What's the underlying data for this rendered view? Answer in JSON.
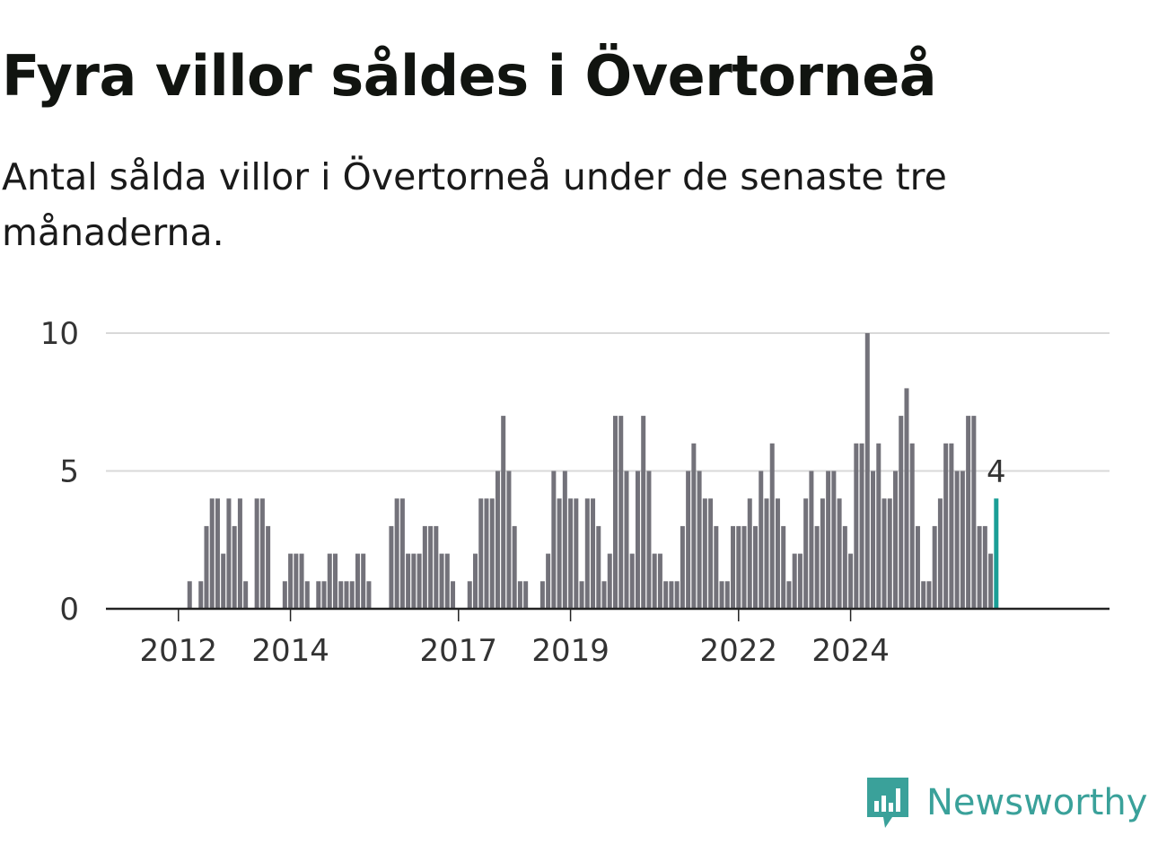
{
  "title": "Fyra villor såldes i Övertorneå",
  "subtitle": "Antal sålda villor i Övertorneå under de senaste tre månaderna.",
  "brand": {
    "name": "Newsworthy",
    "color": "#3aa19a",
    "icon": "newsworthy-logo-icon"
  },
  "colors": {
    "bar": "#73727a",
    "highlight": "#1a9e96",
    "grid": "#d9d9d9",
    "axis": "#222222",
    "text": "#333333"
  },
  "chart_data": {
    "type": "bar",
    "title": "Fyra villor såldes i Övertorneå",
    "xlabel": "",
    "ylabel": "",
    "ylim": [
      0,
      10
    ],
    "yticks": [
      0,
      5,
      10
    ],
    "grid": true,
    "start": "2011-01",
    "xticks": [
      {
        "label": "2012",
        "month_index": 12
      },
      {
        "label": "2014",
        "month_index": 32
      },
      {
        "label": "2017",
        "month_index": 62
      },
      {
        "label": "2019",
        "month_index": 82
      },
      {
        "label": "2022",
        "month_index": 112
      },
      {
        "label": "2024",
        "month_index": 132
      }
    ],
    "values": [
      0,
      0,
      0,
      0,
      0,
      0,
      0,
      0,
      0,
      0,
      0,
      0,
      0,
      0,
      1,
      0,
      1,
      3,
      4,
      4,
      2,
      4,
      3,
      4,
      1,
      0,
      4,
      4,
      3,
      0,
      0,
      1,
      2,
      2,
      2,
      1,
      0,
      1,
      1,
      2,
      2,
      1,
      1,
      1,
      2,
      2,
      1,
      0,
      0,
      0,
      3,
      4,
      4,
      2,
      2,
      2,
      3,
      3,
      3,
      2,
      2,
      1,
      0,
      0,
      1,
      2,
      4,
      4,
      4,
      5,
      7,
      5,
      3,
      1,
      1,
      0,
      0,
      1,
      2,
      5,
      4,
      5,
      4,
      4,
      1,
      4,
      4,
      3,
      1,
      2,
      7,
      7,
      5,
      2,
      5,
      7,
      5,
      2,
      2,
      1,
      1,
      1,
      3,
      5,
      6,
      5,
      4,
      4,
      3,
      1,
      1,
      3,
      3,
      3,
      4,
      3,
      5,
      4,
      6,
      4,
      3,
      1,
      2,
      2,
      4,
      5,
      3,
      4,
      5,
      5,
      4,
      3,
      2,
      6,
      6,
      10,
      5,
      6,
      4,
      4,
      5,
      7,
      8,
      6,
      3,
      1,
      1,
      3,
      4,
      6,
      6,
      5,
      5,
      7,
      7,
      3,
      3,
      2,
      4
    ],
    "highlight": {
      "label": "4",
      "value": 4
    }
  }
}
